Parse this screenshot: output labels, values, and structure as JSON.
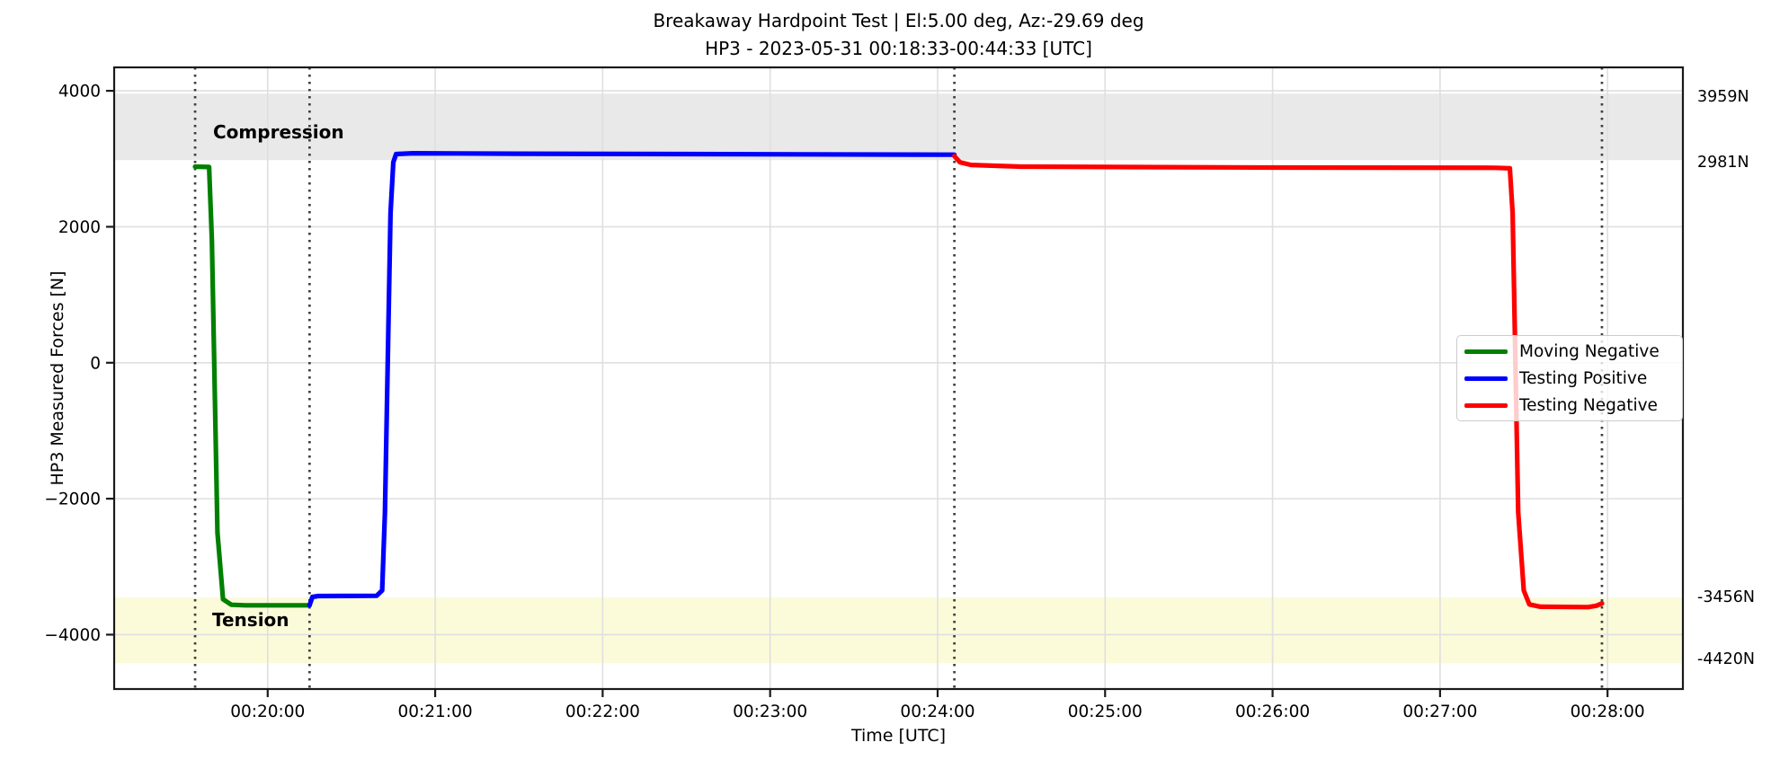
{
  "chart_data": {
    "type": "line",
    "title": "Breakaway Hardpoint Test | El:5.00 deg, Az:-29.69 deg",
    "subtitle": "HP3 - 2023-05-31 00:18:33-00:44:33 [UTC]",
    "xlabel": "Time [UTC]",
    "ylabel": "HP3 Measured Forces [N]",
    "x_axis": {
      "unit": "UTC time HH:MM:SS",
      "min": "00:19:05",
      "max": "00:28:27",
      "ticks": [
        "00:20:00",
        "00:21:00",
        "00:22:00",
        "00:23:00",
        "00:24:00",
        "00:25:00",
        "00:26:00",
        "00:27:00",
        "00:28:00"
      ],
      "grid": true
    },
    "y_axis": {
      "unit": "N",
      "min": -4800,
      "max": 4345,
      "ticks": [
        {
          "value": 4000,
          "label": "4000"
        },
        {
          "value": 2000,
          "label": "2000"
        },
        {
          "value": 0,
          "label": "0"
        },
        {
          "value": -2000,
          "label": "−2000"
        },
        {
          "value": -4000,
          "label": "−4000"
        }
      ],
      "grid": true
    },
    "bands": [
      {
        "label": "Compression",
        "from": 2981,
        "to": 3959,
        "color": "#e9e9e9"
      },
      {
        "label": "Tension",
        "from": -4420,
        "to": -3456,
        "color": "#fbfbd9"
      }
    ],
    "band_edge_annotations": [
      {
        "label": "3959N",
        "value": 3959
      },
      {
        "label": "2981N",
        "value": 2981
      },
      {
        "label": "-3456N",
        "value": -3456
      },
      {
        "label": "-4420N",
        "value": -4420
      }
    ],
    "event_vlines": [
      "00:19:34",
      "00:20:15",
      "00:24:06",
      "00:27:58"
    ],
    "series": [
      {
        "name": "Moving Negative",
        "color": "#008000",
        "points": [
          [
            "00:19:34",
            2885
          ],
          [
            "00:19:39",
            2880
          ],
          [
            "00:19:40",
            1800
          ],
          [
            "00:19:42",
            -2500
          ],
          [
            "00:19:44",
            -3480
          ],
          [
            "00:19:47",
            -3560
          ],
          [
            "00:19:52",
            -3568
          ],
          [
            "00:20:15",
            -3568
          ]
        ]
      },
      {
        "name": "Testing Positive",
        "color": "#0000ff",
        "points": [
          [
            "00:20:15",
            -3568
          ],
          [
            "00:20:16",
            -3445
          ],
          [
            "00:20:18",
            -3432
          ],
          [
            "00:20:39",
            -3428
          ],
          [
            "00:20:41",
            -3350
          ],
          [
            "00:20:42",
            -2200
          ],
          [
            "00:20:44",
            2200
          ],
          [
            "00:20:45",
            2950
          ],
          [
            "00:20:46",
            3070
          ],
          [
            "00:20:52",
            3082
          ],
          [
            "00:21:30",
            3075
          ],
          [
            "00:24:06",
            3060
          ]
        ]
      },
      {
        "name": "Testing Negative",
        "color": "#ff0000",
        "points": [
          [
            "00:24:06",
            3040
          ],
          [
            "00:24:08",
            2950
          ],
          [
            "00:24:12",
            2910
          ],
          [
            "00:24:30",
            2885
          ],
          [
            "00:26:00",
            2872
          ],
          [
            "00:27:20",
            2868
          ],
          [
            "00:27:25",
            2860
          ],
          [
            "00:27:26",
            2200
          ],
          [
            "00:27:28",
            -2200
          ],
          [
            "00:27:30",
            -3350
          ],
          [
            "00:27:32",
            -3555
          ],
          [
            "00:27:36",
            -3590
          ],
          [
            "00:27:53",
            -3595
          ],
          [
            "00:27:56",
            -3575
          ],
          [
            "00:27:58",
            -3540
          ]
        ]
      }
    ],
    "legend": {
      "position": "center right"
    },
    "colors": {
      "grid": "#dfdfdf",
      "spine": "#1a1a1a",
      "vline": "#3f3f3f",
      "text": "#000000"
    }
  }
}
